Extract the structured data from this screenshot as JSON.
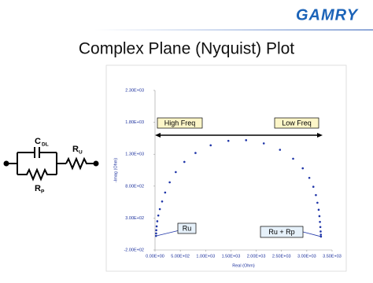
{
  "header": {
    "logo": "GAMRY",
    "title": "Complex Plane (Nyquist) Plot"
  },
  "circuit": {
    "capacitor": {
      "symbol": "C",
      "subscript": "DL"
    },
    "series_resistor": {
      "symbol": "R",
      "subscript": "U"
    },
    "parallel_resistor": {
      "symbol": "R",
      "subscript": "P"
    }
  },
  "chart_data": {
    "type": "scatter",
    "xlabel": "Real (Ohm)",
    "ylabel": "-Imag (Ohm)",
    "color": "#1f35a8",
    "x": [
      20,
      22,
      25,
      32,
      45,
      65,
      95,
      140,
      200,
      290,
      410,
      580,
      800,
      1100,
      1450,
      1800,
      2150,
      2470,
      2730,
      2920,
      3050,
      3130,
      3180,
      3210,
      3235,
      3250,
      3260,
      3268,
      3274,
      3278,
      3280
    ],
    "values": [
      20,
      60,
      110,
      170,
      250,
      340,
      440,
      560,
      700,
      860,
      1020,
      1180,
      1320,
      1440,
      1510,
      1520,
      1470,
      1370,
      1230,
      1080,
      930,
      790,
      660,
      540,
      430,
      330,
      240,
      160,
      90,
      40,
      10
    ],
    "xlim": [
      0,
      3500
    ],
    "ylim": [
      -200,
      2300
    ],
    "xticks": [
      {
        "value": 0,
        "label": "0.00E+00"
      },
      {
        "value": 500,
        "label": "5.00E+02"
      },
      {
        "value": 1000,
        "label": "1.00E+03"
      },
      {
        "value": 1500,
        "label": "1.50E+03"
      },
      {
        "value": 2000,
        "label": "2.00E+03"
      },
      {
        "value": 2500,
        "label": "2.50E+03"
      },
      {
        "value": 3000,
        "label": "3.00E+03"
      },
      {
        "value": 3500,
        "label": "3.50E+03"
      }
    ],
    "yticks": [
      {
        "value": -200,
        "label": "-2.00E+02"
      },
      {
        "value": 300,
        "label": "3.00E+02"
      },
      {
        "value": 800,
        "label": "8.00E+02"
      },
      {
        "value": 1300,
        "label": "1.30E+03"
      },
      {
        "value": 1800,
        "label": "1.80E+03"
      },
      {
        "value": 2300,
        "label": "2.30E+03"
      }
    ],
    "grid": false,
    "annotations": [
      "High Freq",
      "Low Freq",
      "Ru",
      "Ru + Rp"
    ]
  }
}
